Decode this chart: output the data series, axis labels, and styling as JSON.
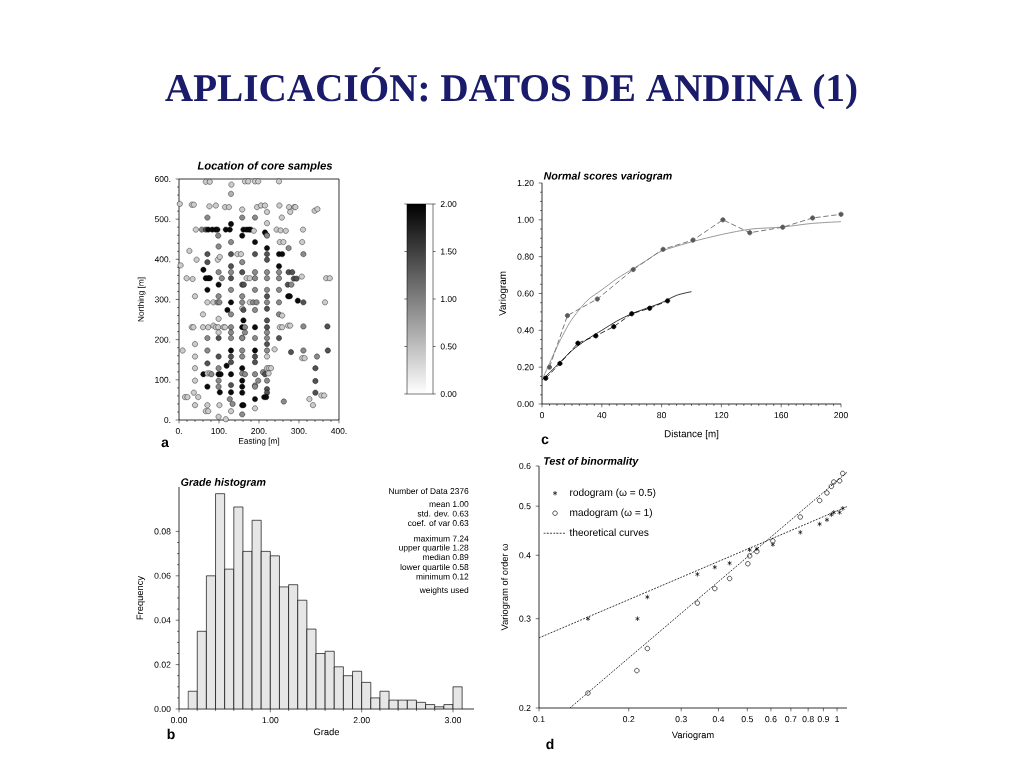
{
  "chart_data": [
    {
      "type": "other",
      "title": "APLICACIÓN: DATOS DE ANDINA (1)"
    },
    {
      "type": "scatter",
      "title": "Location of core samples",
      "xlabel": "Easting [m]",
      "ylabel": "Northing [m]",
      "marker": "circle",
      "xlim": [
        0,
        400
      ],
      "ylim": [
        0,
        600
      ],
      "xticks": [
        {
          "value": 0,
          "label": "0."
        },
        {
          "value": 100,
          "label": "100."
        },
        {
          "value": 200,
          "label": "200."
        },
        {
          "value": 300,
          "label": "300."
        },
        {
          "value": 400,
          "label": "400."
        }
      ],
      "yticks": [
        {
          "value": 0,
          "label": "0."
        },
        {
          "value": 100,
          "label": "100."
        },
        {
          "value": 200,
          "label": "200."
        },
        {
          "value": 300,
          "label": "300."
        },
        {
          "value": 400,
          "label": "400."
        },
        {
          "value": 500,
          "label": "500."
        },
        {
          "value": 600,
          "label": "600."
        }
      ],
      "clim": [
        0,
        2
      ],
      "cticks": [
        {
          "value": 0,
          "label": "0.00"
        },
        {
          "value": 0.5,
          "label": "0.50"
        },
        {
          "value": 1,
          "label": "1.00"
        },
        {
          "value": 1.5,
          "label": "1.50"
        },
        {
          "value": 2,
          "label": "2.00"
        }
      ],
      "x": [
        67,
        77,
        131,
        165,
        173,
        190,
        198,
        250,
        130,
        2,
        32,
        37,
        76,
        92,
        115,
        125,
        158,
        195,
        205,
        215,
        220,
        251,
        275,
        278,
        288,
        291,
        339,
        346,
        71,
        158,
        190,
        257,
        220,
        130,
        42,
        57,
        67,
        73,
        83,
        92,
        96,
        117,
        127,
        161,
        169,
        175,
        179,
        187,
        215,
        219,
        244,
        254,
        267,
        310,
        98,
        158,
        220,
        130,
        190,
        252,
        261,
        308,
        99,
        220,
        274,
        26,
        71,
        130,
        146,
        155,
        190,
        220,
        250,
        258,
        311,
        44,
        97,
        102,
        71,
        130,
        158,
        220,
        250,
        4,
        61,
        99,
        130,
        158,
        190,
        220,
        250,
        274,
        283,
        19,
        34,
        67,
        73,
        77,
        107,
        130,
        169,
        177,
        190,
        220,
        250,
        287,
        294,
        307,
        368,
        377,
        99,
        158,
        162,
        272,
        281,
        71,
        130,
        190,
        220,
        250,
        40,
        99,
        158,
        220,
        273,
        277,
        71,
        86,
        96,
        101,
        130,
        158,
        177,
        185,
        194,
        220,
        250,
        297,
        311,
        365,
        121,
        130,
        158,
        161,
        190,
        220,
        60,
        250,
        258,
        99,
        161,
        220,
        32,
        36,
        60,
        73,
        86,
        92,
        98,
        111,
        115,
        130,
        158,
        165,
        190,
        220,
        252,
        258,
        273,
        278,
        311,
        371,
        99,
        130,
        165,
        158,
        220,
        71,
        99,
        130,
        158,
        190,
        220,
        250,
        40,
        220,
        9,
        71,
        130,
        158,
        190,
        220,
        239,
        280,
        311,
        372,
        40,
        99,
        130,
        158,
        190,
        220,
        308,
        314,
        345,
        71,
        119,
        130,
        158,
        190,
        40,
        99,
        220,
        225,
        230,
        61,
        71,
        77,
        81,
        99,
        104,
        130,
        158,
        165,
        190,
        210,
        215,
        224,
        341,
        341,
        40,
        99,
        130,
        158,
        190,
        198,
        220,
        71,
        99,
        130,
        158,
        190,
        220,
        341,
        37,
        102,
        158,
        220,
        15,
        21,
        48,
        127,
        190,
        213,
        218,
        326,
        356,
        363,
        262,
        40,
        71,
        101,
        134,
        158,
        161,
        335,
        67,
        73,
        130,
        190,
        158,
        99,
        117
      ],
      "values": [
        593,
        593,
        586,
        594,
        594,
        594,
        594,
        594,
        563,
        538,
        536,
        536,
        532,
        534,
        530,
        530,
        524,
        530,
        534,
        534,
        518,
        534,
        530,
        518,
        530,
        530,
        521,
        525,
        504,
        504,
        504,
        504,
        490,
        488,
        474,
        474,
        474,
        474,
        474,
        474,
        474,
        474,
        474,
        474,
        474,
        474,
        474,
        471,
        467,
        461,
        474,
        472,
        471,
        474,
        459,
        459,
        459,
        443,
        443,
        443,
        443,
        443,
        432,
        428,
        428,
        421,
        413,
        413,
        413,
        413,
        413,
        413,
        413,
        413,
        413,
        399,
        399,
        406,
        393,
        383,
        393,
        399,
        383,
        385,
        374,
        368,
        368,
        368,
        368,
        368,
        368,
        368,
        368,
        353,
        351,
        353,
        353,
        353,
        353,
        353,
        353,
        353,
        353,
        353,
        353,
        352,
        352,
        357,
        353,
        353,
        337,
        337,
        337,
        337,
        337,
        324,
        324,
        324,
        324,
        324,
        308,
        308,
        308,
        308,
        308,
        308,
        293,
        293,
        293,
        293,
        293,
        293,
        293,
        293,
        293,
        293,
        293,
        297,
        293,
        293,
        274,
        263,
        278,
        274,
        274,
        277,
        263,
        263,
        260,
        252,
        248,
        248,
        231,
        231,
        231,
        231,
        235,
        231,
        231,
        231,
        231,
        231,
        231,
        231,
        231,
        231,
        231,
        231,
        235,
        235,
        233,
        233,
        218,
        218,
        218,
        205,
        218,
        204,
        204,
        204,
        204,
        204,
        204,
        204,
        189,
        189,
        173,
        173,
        173,
        173,
        173,
        173,
        176,
        169,
        173,
        173,
        158,
        158,
        158,
        158,
        158,
        158,
        154,
        154,
        158,
        141,
        135,
        144,
        129,
        144,
        129,
        129,
        129,
        129,
        129,
        114,
        116,
        116,
        114,
        114,
        114,
        114,
        116,
        114,
        114,
        119,
        114,
        116,
        129,
        97,
        98,
        98,
        87,
        98,
        86,
        98,
        98,
        83,
        83,
        69,
        83,
        83,
        77,
        68,
        68,
        69,
        68,
        68,
        57,
        57,
        57,
        52,
        52,
        57,
        57,
        52,
        61,
        61,
        46,
        37,
        37,
        37,
        40,
        37,
        37,
        37,
        22,
        22,
        22,
        29,
        14,
        8,
        2
      ],
      "cvalues": [
        0.4,
        0.4,
        0.4,
        0.4,
        0.4,
        0.4,
        0.4,
        0.4,
        0.6,
        0.4,
        0.4,
        0.4,
        0.4,
        0.4,
        0.4,
        0.4,
        0.4,
        0.4,
        0.4,
        0.4,
        0.4,
        0.4,
        0.4,
        0.4,
        0.4,
        0.4,
        0.4,
        0.4,
        0.9,
        0.9,
        0.9,
        0.4,
        0.4,
        1.9,
        0.4,
        0.9,
        1.35,
        1.9,
        1.9,
        1.9,
        1.9,
        1.9,
        1.9,
        1.9,
        1.9,
        1.9,
        1.9,
        0.4,
        1.9,
        1.35,
        0.4,
        0.4,
        0.4,
        0.4,
        0.9,
        1.9,
        0.9,
        0.9,
        1.9,
        0.4,
        0.4,
        0.4,
        0.9,
        1.9,
        0.9,
        0.4,
        1.35,
        1.35,
        0.4,
        0.4,
        1.35,
        1.35,
        1.9,
        1.9,
        0.9,
        0.4,
        0.4,
        0.4,
        1.35,
        1.35,
        0.9,
        1.35,
        1.9,
        0.4,
        1.9,
        0.9,
        0.9,
        1.35,
        0.9,
        0.9,
        0.9,
        1.35,
        1.35,
        0.4,
        0.4,
        1.9,
        1.9,
        1.9,
        0.9,
        1.35,
        0.4,
        0.4,
        0.9,
        0.9,
        0.9,
        1.35,
        1.35,
        0.4,
        0.4,
        0.4,
        1.9,
        1.35,
        1.35,
        1.35,
        0.9,
        1.9,
        0.9,
        0.9,
        0.9,
        0.9,
        0.4,
        0.9,
        0.9,
        1.35,
        1.9,
        1.9,
        0.4,
        0.4,
        0.9,
        0.9,
        1.9,
        0.9,
        0.4,
        0.9,
        0.9,
        0.9,
        0.9,
        1.9,
        1.35,
        0.4,
        1.9,
        0.9,
        0.4,
        1.35,
        0.9,
        1.35,
        0.4,
        0.9,
        0.4,
        0.4,
        1.9,
        1.35,
        0.4,
        0.4,
        0.4,
        0.4,
        0.4,
        0.4,
        0.4,
        0.4,
        0.4,
        0.9,
        1.9,
        0.9,
        1.9,
        1.35,
        0.4,
        0.4,
        0.4,
        0.4,
        0.9,
        1.35,
        0.4,
        0.9,
        0.9,
        0.4,
        0.9,
        0.9,
        1.35,
        0.9,
        0.9,
        0.9,
        0.9,
        1.35,
        0.4,
        1.35,
        0.4,
        0.9,
        1.9,
        0.9,
        1.9,
        0.9,
        0.4,
        1.35,
        0.9,
        1.35,
        0.4,
        1.35,
        1.35,
        0.9,
        1.35,
        0.4,
        0.4,
        0.4,
        0.9,
        1.35,
        1.9,
        1.35,
        1.9,
        1.35,
        0.4,
        0.9,
        0.4,
        0.4,
        0.4,
        1.9,
        0.4,
        0.4,
        0.9,
        1.9,
        1.9,
        1.9,
        0.9,
        0.9,
        0.9,
        0.9,
        1.35,
        0.4,
        1.35,
        1.35,
        0.4,
        0.9,
        1.35,
        1.9,
        0.9,
        0.9,
        0.9,
        1.9,
        0.9,
        1.9,
        1.9,
        0.9,
        1.35,
        1.35,
        0.4,
        1.9,
        1.9,
        1.35,
        0.4,
        0.4,
        0.4,
        0.9,
        1.9,
        1.9,
        1.9,
        0.4,
        0.4,
        0.4,
        0.9,
        0.4,
        0.4,
        0.4,
        0.9,
        1.9,
        1.9,
        0.4,
        0.4,
        0.4,
        0.4,
        0.4,
        0.9,
        0.4,
        0.4
      ],
      "annotations": [
        "a"
      ]
    },
    {
      "type": "line",
      "title": "Normal scores variogram",
      "xlabel": "Distance [m]",
      "ylabel": "Variogram",
      "xlim": [
        0,
        200
      ],
      "ylim": [
        0,
        1.2
      ],
      "xticks": [
        0,
        40,
        80,
        120,
        160,
        200
      ],
      "yticks": [
        {
          "value": 0,
          "label": "0.00"
        },
        {
          "value": 0.2,
          "label": "0.20"
        },
        {
          "value": 0.4,
          "label": "0.40"
        },
        {
          "value": 0.6,
          "label": "0.60"
        },
        {
          "value": 0.8,
          "label": "0.80"
        },
        {
          "value": 1,
          "label": "1.00"
        },
        {
          "value": 1.2,
          "label": "1.20"
        }
      ],
      "series": [
        {
          "color": "#595959",
          "marker": "circle",
          "line_style": "dashed",
          "x": [
            5,
            17,
            37,
            61,
            81,
            101,
            121,
            139,
            161,
            181,
            200
          ],
          "values": [
            0.2,
            0.48,
            0.57,
            0.73,
            0.84,
            0.89,
            1.0,
            0.93,
            0.96,
            1.01,
            1.03
          ]
        },
        {
          "color": "#7f7f7f",
          "marker": "none",
          "line_style": "solid",
          "x": [
            0,
            5,
            10,
            15,
            20,
            30,
            40,
            50,
            60,
            70,
            80,
            100,
            120,
            140,
            160,
            180,
            200
          ],
          "values": [
            0.13,
            0.22,
            0.31,
            0.39,
            0.46,
            0.56,
            0.62,
            0.68,
            0.73,
            0.78,
            0.83,
            0.88,
            0.92,
            0.95,
            0.96,
            0.98,
            0.99
          ]
        },
        {
          "color": "#000000",
          "marker": "circle",
          "line_style": "dashed",
          "x": [
            2.5,
            12,
            24,
            36,
            48,
            60,
            72,
            84
          ],
          "values": [
            0.14,
            0.22,
            0.33,
            0.37,
            0.42,
            0.49,
            0.52,
            0.56
          ]
        },
        {
          "color": "#000000",
          "marker": "none",
          "line_style": "solid",
          "x": [
            0,
            10,
            20,
            30,
            40,
            50,
            60,
            70,
            80,
            90,
            100
          ],
          "values": [
            0.13,
            0.21,
            0.29,
            0.35,
            0.4,
            0.45,
            0.49,
            0.52,
            0.55,
            0.59,
            0.61
          ]
        }
      ],
      "annotations": [
        "c"
      ]
    },
    {
      "type": "histogram",
      "title": "Grade histogram",
      "xlabel": "Grade",
      "ylabel": "Frequency",
      "color": "#e6e6e6",
      "xlim": [
        0,
        3.23
      ],
      "ylim": [
        0,
        0.1
      ],
      "xticks": [
        {
          "value": 0,
          "label": "0.00"
        },
        {
          "value": 1,
          "label": "1.00"
        },
        {
          "value": 2,
          "label": "2.00"
        },
        {
          "value": 3,
          "label": "3.00"
        }
      ],
      "yticks": [
        {
          "value": 0,
          "label": "0.00"
        },
        {
          "value": 0.02,
          "label": "0.02"
        },
        {
          "value": 0.04,
          "label": "0.04"
        },
        {
          "value": 0.06,
          "label": "0.06"
        },
        {
          "value": 0.08,
          "label": "0.08"
        }
      ],
      "bins": [
        0.1,
        0.2,
        0.3,
        0.4,
        0.5,
        0.6,
        0.7,
        0.8,
        0.9,
        1.0,
        1.1,
        1.2,
        1.3,
        1.4,
        1.5,
        1.6,
        1.7,
        1.8,
        1.9,
        2.0,
        2.1,
        2.2,
        2.3,
        2.4,
        2.5,
        2.6,
        2.7,
        2.8,
        2.9,
        3.0,
        3.1
      ],
      "values": [
        0.008,
        0.035,
        0.06,
        0.097,
        0.063,
        0.091,
        0.071,
        0.085,
        0.071,
        0.069,
        0.055,
        0.056,
        0.049,
        0.036,
        0.025,
        0.026,
        0.019,
        0.015,
        0.017,
        0.012,
        0.005,
        0.008,
        0.004,
        0.004,
        0.004,
        0.003,
        0.002,
        0.001,
        0.002,
        0.01
      ],
      "annotations": [
        "Number of Data 2376",
        "mean 1.00",
        "std. dev. 0.63",
        "coef. of var 0.63",
        "maximum 7.24",
        "upper quartile 1.28",
        "median 0.89",
        "lower quartile 0.58",
        "minimum 0.12",
        "weights used",
        "b"
      ]
    },
    {
      "type": "scatter",
      "title": "Test of binormality",
      "xlabel": "Variogram",
      "ylabel": "Variogram of order ω",
      "log": "xy",
      "legend": "top left",
      "xlim": [
        0.1,
        1.08
      ],
      "ylim": [
        0.2,
        0.6
      ],
      "xticks": [
        0.1,
        0.2,
        0.3,
        0.4,
        0.5,
        0.6,
        0.7,
        0.8,
        0.9,
        1
      ],
      "yticks": [
        0.2,
        0.3,
        0.4,
        0.5,
        0.6
      ],
      "series": [
        {
          "name": "rodogram (ω = 0.5)",
          "color": "#000000",
          "marker": "cross",
          "x": [
            0.146,
            0.214,
            0.231,
            0.34,
            0.389,
            0.436,
            0.509,
            0.538,
            0.609,
            0.753,
            0.874,
            0.925,
            0.957,
            0.975,
            1.02,
            1.045
          ],
          "values": [
            0.3,
            0.3,
            0.331,
            0.367,
            0.379,
            0.386,
            0.41,
            0.412,
            0.42,
            0.444,
            0.461,
            0.47,
            0.481,
            0.486,
            0.486,
            0.495
          ]
        },
        {
          "name": "madogram (ω = 1)",
          "color": "#000000",
          "marker": "circle",
          "x": [
            0.146,
            0.213,
            0.231,
            0.34,
            0.389,
            0.436,
            0.502,
            0.509,
            0.538,
            0.609,
            0.753,
            0.874,
            0.925,
            0.957,
            0.975,
            1.02,
            1.045
          ],
          "values": [
            0.214,
            0.237,
            0.262,
            0.322,
            0.344,
            0.36,
            0.385,
            0.399,
            0.407,
            0.427,
            0.476,
            0.513,
            0.531,
            0.547,
            0.558,
            0.561,
            0.58
          ]
        },
        {
          "name": "theoretical curves",
          "type": "line",
          "color": "#000000",
          "marker": "none",
          "line_style": "dotted",
          "x": [
            0.1,
            0.3,
            1.08
          ],
          "values": [
            0.275,
            0.362,
            0.499
          ]
        },
        {
          "type": "line",
          "color": "#000000",
          "marker": "none",
          "line_style": "dotted",
          "x": [
            0.127,
            0.4,
            1.08
          ],
          "values": [
            0.2,
            0.355,
            0.583
          ]
        }
      ],
      "annotations": [
        "d"
      ]
    }
  ]
}
